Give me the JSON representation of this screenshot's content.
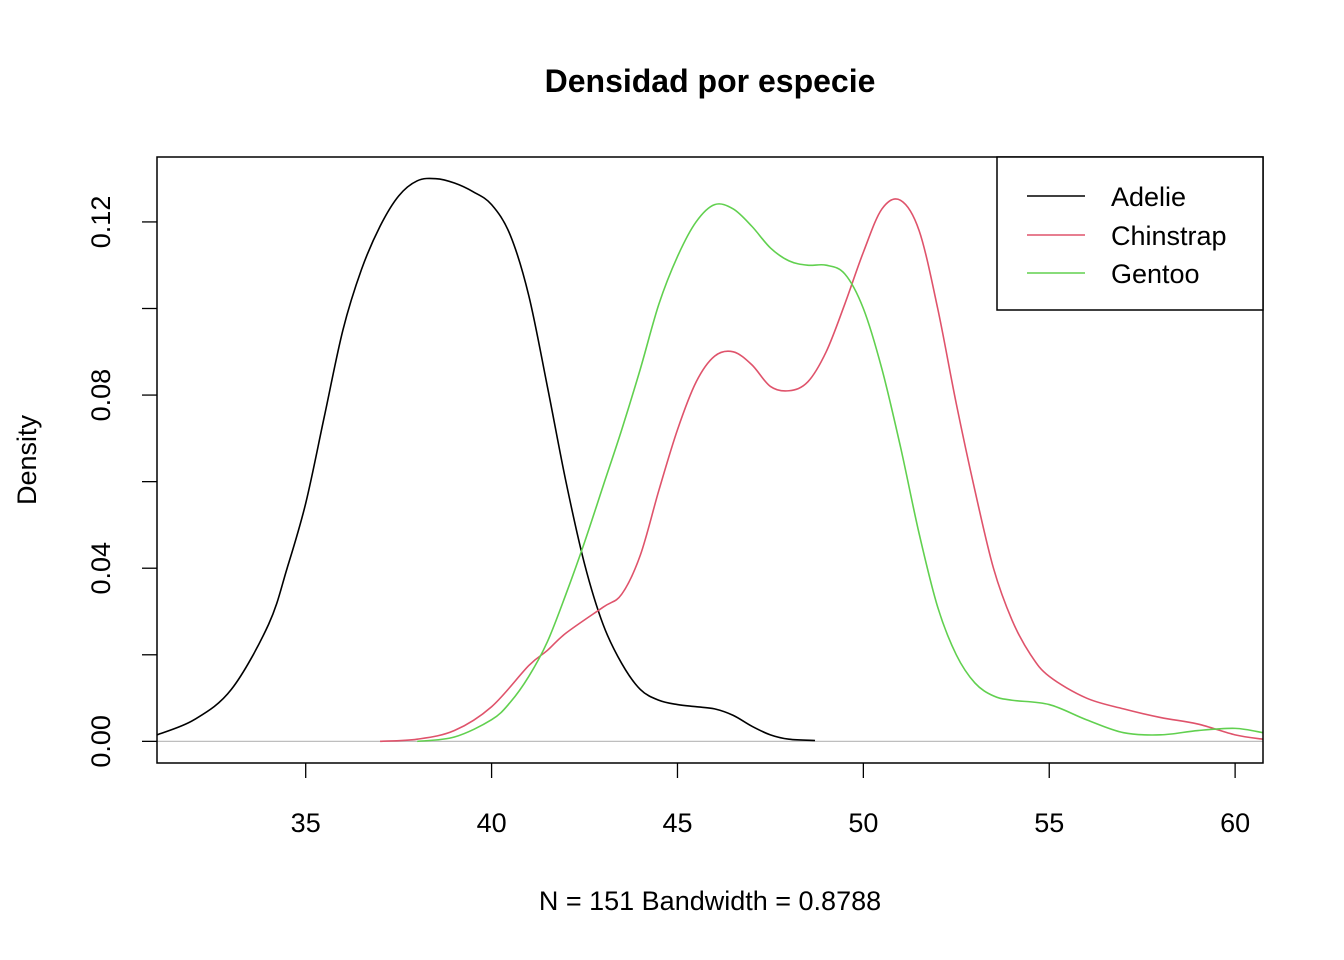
{
  "chart_data": {
    "type": "line",
    "title": "Densidad por especie",
    "xlabel": "N = 151   Bandwidth = 0.8788",
    "ylabel": "Density",
    "xlim": [
      31,
      60.75
    ],
    "ylim": [
      -0.005,
      0.135
    ],
    "x_ticks": [
      35,
      40,
      45,
      50,
      55,
      60
    ],
    "x_tick_labels": [
      "35",
      "40",
      "45",
      "50",
      "55",
      "60"
    ],
    "y_ticks": [
      0,
      0.02,
      0.04,
      0.06,
      0.08,
      0.1,
      0.12
    ],
    "y_tick_labels": [
      "0.00",
      "",
      "0.04",
      "",
      "0.08",
      "",
      "0.12"
    ],
    "baseline": 0,
    "legend_position": "top-right",
    "series": [
      {
        "name": "Adelie",
        "color": "#000000",
        "x": [
          31.0,
          32.0,
          33.0,
          34.0,
          34.5,
          35.0,
          35.5,
          36.0,
          36.5,
          37.0,
          37.5,
          38.0,
          38.5,
          39.0,
          39.5,
          40.0,
          40.5,
          41.0,
          41.5,
          42.0,
          42.5,
          43.0,
          43.5,
          44.0,
          44.5,
          45.0,
          45.5,
          46.0,
          46.5,
          47.0,
          47.5,
          48.0,
          48.7
        ],
        "y": [
          0.0015,
          0.005,
          0.012,
          0.027,
          0.04,
          0.055,
          0.075,
          0.095,
          0.109,
          0.119,
          0.126,
          0.1295,
          0.13,
          0.129,
          0.127,
          0.124,
          0.117,
          0.103,
          0.082,
          0.06,
          0.041,
          0.027,
          0.018,
          0.012,
          0.0095,
          0.0085,
          0.008,
          0.0075,
          0.006,
          0.0035,
          0.0015,
          0.0005,
          0.0002
        ]
      },
      {
        "name": "Chinstrap",
        "color": "#DF536B",
        "x": [
          37.0,
          38.0,
          39.0,
          40.0,
          41.0,
          41.5,
          42.0,
          43.0,
          43.5,
          44.0,
          44.5,
          45.0,
          45.5,
          46.0,
          46.5,
          47.0,
          47.5,
          48.0,
          48.5,
          49.0,
          49.5,
          50.0,
          50.5,
          51.0,
          51.5,
          52.0,
          52.5,
          53.0,
          53.5,
          54.0,
          54.5,
          55.0,
          56.0,
          57.0,
          58.0,
          59.0,
          60.0,
          60.75
        ],
        "y": [
          0.0,
          0.0005,
          0.0025,
          0.008,
          0.0175,
          0.021,
          0.025,
          0.031,
          0.034,
          0.043,
          0.058,
          0.072,
          0.083,
          0.089,
          0.09,
          0.087,
          0.082,
          0.081,
          0.083,
          0.09,
          0.101,
          0.113,
          0.123,
          0.125,
          0.118,
          0.1,
          0.078,
          0.058,
          0.04,
          0.028,
          0.02,
          0.015,
          0.01,
          0.0075,
          0.0055,
          0.004,
          0.0015,
          0.0005
        ]
      },
      {
        "name": "Gentoo",
        "color": "#61D04F",
        "x": [
          38.0,
          39.0,
          40.0,
          40.5,
          41.0,
          41.5,
          42.0,
          42.5,
          43.0,
          43.5,
          44.0,
          44.5,
          45.0,
          45.5,
          46.0,
          46.5,
          47.0,
          47.5,
          48.0,
          48.5,
          49.0,
          49.5,
          50.0,
          50.5,
          51.0,
          51.5,
          52.0,
          52.5,
          53.0,
          53.5,
          54.0,
          55.0,
          56.0,
          57.0,
          58.0,
          59.0,
          60.0,
          60.75
        ],
        "y": [
          0.0,
          0.001,
          0.005,
          0.009,
          0.015,
          0.023,
          0.034,
          0.046,
          0.059,
          0.072,
          0.086,
          0.101,
          0.112,
          0.12,
          0.124,
          0.123,
          0.119,
          0.114,
          0.111,
          0.11,
          0.11,
          0.108,
          0.1,
          0.086,
          0.068,
          0.048,
          0.031,
          0.02,
          0.0135,
          0.0105,
          0.0095,
          0.0085,
          0.005,
          0.002,
          0.0015,
          0.0025,
          0.003,
          0.002
        ]
      }
    ]
  }
}
